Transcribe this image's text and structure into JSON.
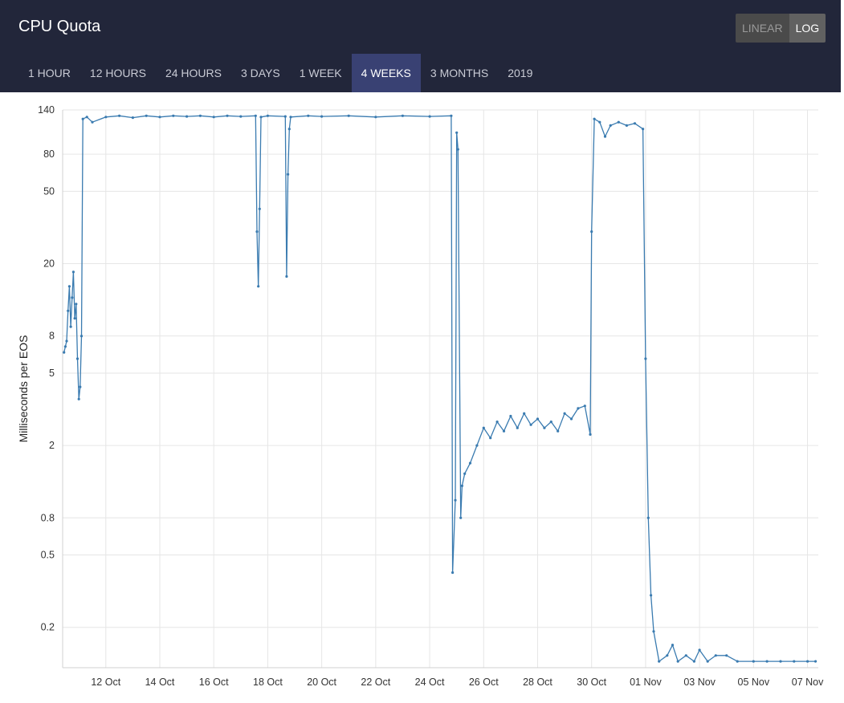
{
  "header": {
    "title": "CPU Quota",
    "scale_options": [
      {
        "label": "LINEAR",
        "active": false
      },
      {
        "label": "LOG",
        "active": true
      }
    ],
    "ranges": [
      {
        "label": "1 HOUR",
        "active": false
      },
      {
        "label": "12 HOURS",
        "active": false
      },
      {
        "label": "24 HOURS",
        "active": false
      },
      {
        "label": "3 DAYS",
        "active": false
      },
      {
        "label": "1 WEEK",
        "active": false
      },
      {
        "label": "4 WEEKS",
        "active": true
      },
      {
        "label": "3 MONTHS",
        "active": false
      },
      {
        "label": "2019",
        "active": false
      }
    ]
  },
  "colors": {
    "header_bg": "#22263a",
    "active_tab": "#394173",
    "line": "#3a7bb0",
    "grid": "#e6e6e6"
  },
  "chart_data": {
    "type": "line",
    "scale": "log",
    "title": "",
    "xlabel": "",
    "ylabel": "Milliseconds per EOS",
    "ylim": [
      0.12,
      140
    ],
    "yticks": [
      140,
      80,
      50,
      20,
      8,
      5,
      2,
      0.8,
      0.5,
      0.2
    ],
    "ytick_labels": [
      "140",
      "80",
      "50",
      "20",
      "8",
      "5",
      "2",
      "0.8",
      "0.5",
      "0.2"
    ],
    "xticks": [
      12,
      14,
      16,
      18,
      20,
      22,
      24,
      26,
      28,
      30,
      32,
      34,
      36,
      38
    ],
    "xtick_labels": [
      "12 Oct",
      "14 Oct",
      "16 Oct",
      "18 Oct",
      "20 Oct",
      "22 Oct",
      "24 Oct",
      "26 Oct",
      "28 Oct",
      "30 Oct",
      "01 Nov",
      "03 Nov",
      "05 Nov",
      "07 Nov"
    ],
    "xlim": [
      10.4,
      38.4
    ],
    "grid": true,
    "series": [
      {
        "name": "",
        "points": [
          [
            10.45,
            6.5
          ],
          [
            10.5,
            7.0
          ],
          [
            10.55,
            7.5
          ],
          [
            10.6,
            11
          ],
          [
            10.65,
            15
          ],
          [
            10.7,
            9
          ],
          [
            10.75,
            13
          ],
          [
            10.8,
            18
          ],
          [
            10.85,
            10
          ],
          [
            10.9,
            12
          ],
          [
            10.95,
            6
          ],
          [
            11.0,
            3.6
          ],
          [
            11.05,
            4.2
          ],
          [
            11.1,
            8
          ],
          [
            11.15,
            125
          ],
          [
            11.3,
            128
          ],
          [
            11.5,
            120
          ],
          [
            12.0,
            128
          ],
          [
            12.5,
            130
          ],
          [
            13.0,
            127
          ],
          [
            13.5,
            130
          ],
          [
            14.0,
            128
          ],
          [
            14.5,
            130
          ],
          [
            15.0,
            129
          ],
          [
            15.5,
            130
          ],
          [
            16.0,
            128
          ],
          [
            16.5,
            130
          ],
          [
            17.0,
            129
          ],
          [
            17.55,
            130
          ],
          [
            17.6,
            30
          ],
          [
            17.65,
            15
          ],
          [
            17.7,
            40
          ],
          [
            17.75,
            128
          ],
          [
            18.0,
            130
          ],
          [
            18.65,
            129
          ],
          [
            18.7,
            17
          ],
          [
            18.75,
            62
          ],
          [
            18.8,
            110
          ],
          [
            18.85,
            128
          ],
          [
            19.5,
            130
          ],
          [
            20.0,
            129
          ],
          [
            21.0,
            130
          ],
          [
            22.0,
            128
          ],
          [
            23.0,
            130
          ],
          [
            24.0,
            129
          ],
          [
            24.8,
            130
          ],
          [
            24.85,
            0.4
          ],
          [
            24.95,
            1.0
          ],
          [
            25.0,
            105
          ],
          [
            25.05,
            85
          ],
          [
            25.15,
            0.8
          ],
          [
            25.2,
            1.2
          ],
          [
            25.3,
            1.4
          ],
          [
            25.5,
            1.6
          ],
          [
            25.75,
            2.0
          ],
          [
            26.0,
            2.5
          ],
          [
            26.25,
            2.2
          ],
          [
            26.5,
            2.7
          ],
          [
            26.75,
            2.4
          ],
          [
            27.0,
            2.9
          ],
          [
            27.25,
            2.5
          ],
          [
            27.5,
            3.0
          ],
          [
            27.75,
            2.6
          ],
          [
            28.0,
            2.8
          ],
          [
            28.25,
            2.5
          ],
          [
            28.5,
            2.7
          ],
          [
            28.75,
            2.4
          ],
          [
            29.0,
            3.0
          ],
          [
            29.25,
            2.8
          ],
          [
            29.5,
            3.2
          ],
          [
            29.75,
            3.3
          ],
          [
            29.95,
            2.3
          ],
          [
            30.0,
            30
          ],
          [
            30.1,
            125
          ],
          [
            30.3,
            120
          ],
          [
            30.5,
            100
          ],
          [
            30.7,
            115
          ],
          [
            31.0,
            120
          ],
          [
            31.3,
            115
          ],
          [
            31.6,
            118
          ],
          [
            31.9,
            110
          ],
          [
            32.0,
            6
          ],
          [
            32.1,
            0.8
          ],
          [
            32.2,
            0.3
          ],
          [
            32.3,
            0.19
          ],
          [
            32.5,
            0.13
          ],
          [
            32.8,
            0.14
          ],
          [
            33.0,
            0.16
          ],
          [
            33.2,
            0.13
          ],
          [
            33.5,
            0.14
          ],
          [
            33.8,
            0.13
          ],
          [
            34.0,
            0.15
          ],
          [
            34.3,
            0.13
          ],
          [
            34.6,
            0.14
          ],
          [
            35.0,
            0.14
          ],
          [
            35.4,
            0.13
          ],
          [
            36.0,
            0.13
          ],
          [
            36.5,
            0.13
          ],
          [
            37.0,
            0.13
          ],
          [
            37.5,
            0.13
          ],
          [
            38.0,
            0.13
          ],
          [
            38.3,
            0.13
          ]
        ]
      }
    ]
  }
}
